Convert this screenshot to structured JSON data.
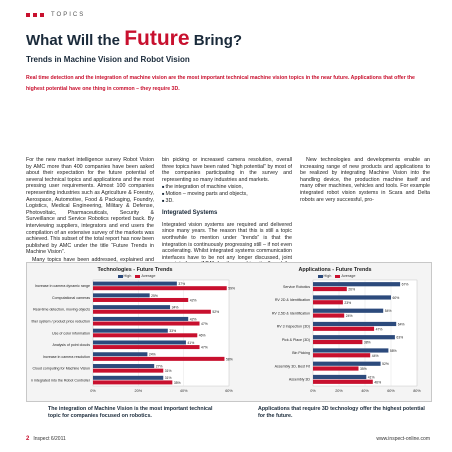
{
  "header": {
    "section": "TOPICS",
    "title_pre": "What Will the ",
    "title_highlight": "Future",
    "title_post": " Bring?",
    "subtitle": "Trends in Machine Vision and Robot Vision"
  },
  "lead": "Real time detection and the integration of machine vision are the most important technical machine vision topics in the near future. Applications that offer the highest potential have one thing in common – they require 3D.",
  "body": {
    "col1": [
      "For the new market intelligence survey Robot Vision by AMC more than 400 companies have been asked about their expectation for the future potential of several technical topics and applications and the most pressing user requirements. Almost 100 companies representing industries such as Agriculture & Forestry, Aerospace, Automotive, Food & Packaging, Foundry, Logistics, Medical Engineering, Military & Defense, Photovoltaic, Pharmaceuticals, Security & Surveillance and Service Robotics reported back. By interviewing suppliers, integrators and end users the compilation of an extensive survey of the markets was achieved. This subset of the total report has now been published by AMC under the title “Future Trends in Machine Vision”.",
      "Many topics have been addressed, explained and analyzed within the reports. Between more or less futuristic topics like computational cameras or service robotics and already well established technologies about to have their breakthrough such as"
    ],
    "col2_intro": "bin picking or increased camera resolution, overall three topics have been rated “high potential” by most of the companies participating in the survey and representing so many industries and markets.",
    "col2_bullets": [
      "the integration of machine vision,",
      "Motion – moving parts and objects,",
      "3D."
    ],
    "col2_heading": "Integrated Systems",
    "col2_after": "Integrated vision systems are required and delivered since many years. The reason that this is still a topic worthwhile to mention under “trends” is that the integration is continuously progressing still – if not even accelerating. Whilst integrated systems communication interfaces have to be not any longer discussed, joint user interfaces (MMI) for the machine itself and the integrated vision part ease the use, less space is required and also many time costs for hardware and training can be saved.",
    "col3": "New technologies and developments enable an increasing range of new products and applications to be realized by integrating Machine Vision into the handling device, the production machine itself and many other machines, vehicles and tools. For example integrated robot vision systems in Scara and Delta robots are very successful, pro-"
  },
  "chart_data": [
    {
      "type": "bar",
      "orientation": "horizontal",
      "title": "Technologies - Future Trends",
      "legend": [
        "High",
        "Average"
      ],
      "categories": [
        "Increase in camera dynamic range",
        "Computational cameras",
        "Real-time detection, moving objects",
        "Further system / product price reduction",
        "Use of color information",
        "Analysis of point clouds",
        "Increase in camera resolution",
        "Cloud computing for Machine Vision",
        "Vision system integrated into the Robot Controller"
      ],
      "series": [
        {
          "name": "High",
          "color": "#2c4a7c",
          "values": [
            37,
            25,
            34,
            42,
            33,
            41,
            24,
            27,
            31
          ]
        },
        {
          "name": "Average",
          "color": "#c8102e",
          "values": [
            59,
            42,
            52,
            47,
            46,
            47,
            58,
            31,
            35
          ]
        }
      ],
      "value_labels": {
        "High": [
          "37%",
          "25%",
          "34%",
          "42%",
          "33%",
          "41%",
          "24%",
          "27%",
          "31%"
        ],
        "Average": [
          "59%",
          "42%",
          "52%",
          "47%",
          "46%",
          "47%",
          "58%",
          "31%",
          "35%"
        ]
      },
      "x_ticks": [
        "0%",
        "20%",
        "40%",
        "60%"
      ],
      "xlim": [
        0,
        60
      ]
    },
    {
      "type": "bar",
      "orientation": "horizontal",
      "title": "Applications - Future Trends",
      "legend": [
        "High",
        "Average"
      ],
      "categories": [
        "Service Robotics",
        "RV 2D & Identification",
        "RV 2,5D & Identification",
        "RV 3 Inspection (3D)",
        "Pick & Place (3D)",
        "Bin Picking",
        "Assembly 3D, Best Fit",
        "Assembly 3D"
      ],
      "series": [
        {
          "name": "High",
          "color": "#2c4a7c",
          "values": [
            67,
            60,
            54,
            64,
            63,
            58,
            52,
            41
          ]
        },
        {
          "name": "Average",
          "color": "#c8102e",
          "values": [
            26,
            23,
            24,
            47,
            38,
            44,
            35,
            46
          ]
        }
      ],
      "value_labels": {
        "High": [
          "67%",
          "60%",
          "54%",
          "64%",
          "63%",
          "58%",
          "52%",
          "41%"
        ],
        "Average": [
          "26%",
          "23%",
          "24%",
          "47%",
          "38%",
          "44%",
          "35%",
          "46%"
        ]
      },
      "x_ticks": [
        "0%",
        "20%",
        "40%",
        "60%",
        "80%"
      ],
      "xlim": [
        0,
        80
      ]
    }
  ],
  "captions": {
    "left": "The integration of Machine Vision is the most important technical topic for companies focused on robotics.",
    "right": "Applications that require 3D technology offer the highest potential for the future."
  },
  "footer": {
    "page": "2",
    "issue": "Inspect 6/2011",
    "url": "www.inspect-online.com"
  }
}
